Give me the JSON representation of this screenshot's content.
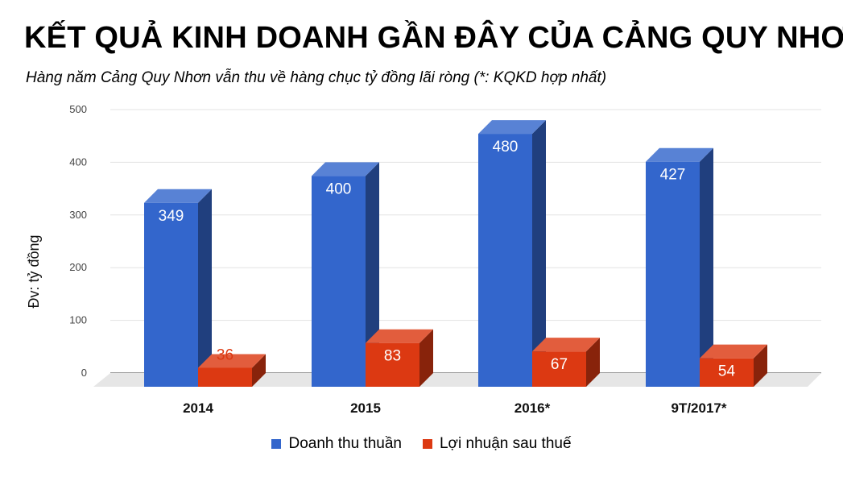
{
  "header": {
    "title": "KẾT QUẢ KINH DOANH GẦN ĐÂY CỦA CẢNG QUY NHƠN",
    "subtitle": "Hàng năm Cảng Quy Nhơn vẫn thu về hàng chục tỷ đồng lãi ròng (*: KQKD hợp nhất)"
  },
  "chart_data": {
    "type": "bar",
    "style": "3d-clustered",
    "title": "KẾT QUẢ KINH DOANH GẦN ĐÂY CỦA CẢNG QUY NHƠN",
    "subtitle": "Hàng năm Cảng Quy Nhơn vẫn thu về hàng chục tỷ đồng lãi ròng (*: KQKD hợp nhất)",
    "categories": [
      "2014",
      "2015",
      "2016*",
      "9T/2017*"
    ],
    "series": [
      {
        "name": "Doanh thu thuần",
        "values": [
          349,
          400,
          480,
          427
        ],
        "color": "#3366cc",
        "label_color": "#ffffff"
      },
      {
        "name": "Lợi nhuận sau thuế",
        "values": [
          36,
          83,
          67,
          54
        ],
        "color": "#dc3912",
        "label_color": "#ffffff"
      }
    ],
    "ylabel": "Đv: tỷ đồng",
    "xlabel": "",
    "ylim": [
      0,
      500
    ],
    "yticks": [
      "0",
      "100",
      "200",
      "300",
      "400",
      "500"
    ],
    "grid": true,
    "legend": "bottom",
    "outside_label_color": "#dc3912"
  }
}
